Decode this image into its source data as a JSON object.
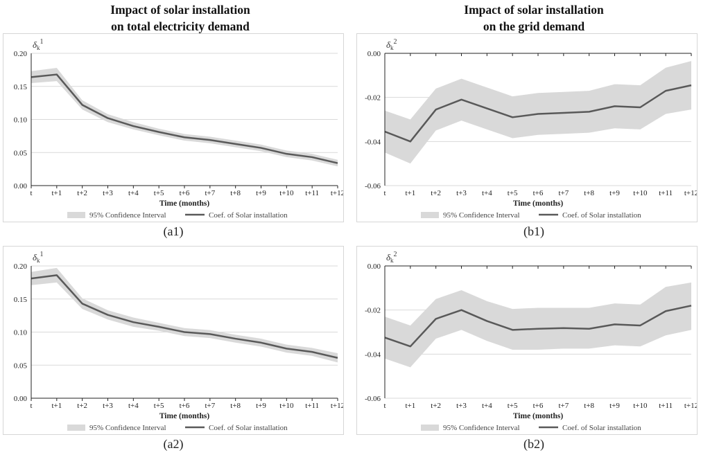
{
  "titles": {
    "left": [
      "Impact of solar installation",
      "on total electricity demand"
    ],
    "right": [
      "Impact of solar installation",
      "on the grid demand"
    ]
  },
  "colors": {
    "band": "#d9d9d9",
    "line": "#595959",
    "grid": "#d9d9d9",
    "axis": "#222222"
  },
  "chart_data": [
    {
      "id": "a1",
      "panel_label": "(a1)",
      "type": "line",
      "ylabel": "δk1",
      "ylabel_sup": "1",
      "xlabel": "Time (months)",
      "x": [
        "t",
        "t+1",
        "t+2",
        "t+3",
        "t+4",
        "t+5",
        "t+6",
        "t+7",
        "t+8",
        "t+9",
        "t+10",
        "t+11",
        "t+12"
      ],
      "yticks": [
        "0.20",
        "0.15",
        "0.10",
        "0.05",
        "0.00"
      ],
      "ylim": [
        0,
        0.2
      ],
      "ytick_values": [
        0.2,
        0.15,
        0.1,
        0.05,
        0
      ],
      "xaxis_position": "bottom",
      "series": [
        {
          "name": "Coef. of Solar installation",
          "values": [
            0.164,
            0.168,
            0.122,
            0.102,
            0.09,
            0.081,
            0.073,
            0.069,
            0.063,
            0.057,
            0.048,
            0.043,
            0.034
          ]
        },
        {
          "name": "95% Confidence Interval",
          "upper": [
            0.173,
            0.178,
            0.129,
            0.108,
            0.096,
            0.086,
            0.078,
            0.074,
            0.068,
            0.062,
            0.053,
            0.048,
            0.039
          ],
          "lower": [
            0.155,
            0.158,
            0.115,
            0.096,
            0.085,
            0.076,
            0.068,
            0.064,
            0.058,
            0.052,
            0.043,
            0.038,
            0.029
          ]
        }
      ],
      "legend": [
        "95% Confidence Interval",
        "Coef. of Solar installation"
      ],
      "legend_position": "bottom"
    },
    {
      "id": "b1",
      "panel_label": "(b1)",
      "type": "line",
      "ylabel": "δk2",
      "ylabel_sup": "2",
      "xlabel": "Time (months)",
      "x": [
        "t",
        "t+1",
        "t+2",
        "t+3",
        "t+4",
        "t+5",
        "t+6",
        "t+7",
        "t+8",
        "t+9",
        "t+10",
        "t+11",
        "t+12"
      ],
      "yticks": [
        "0.00",
        "-0.02",
        "-0.04",
        "-0.06"
      ],
      "ylim": [
        -0.06,
        0
      ],
      "ytick_values": [
        0,
        -0.02,
        -0.04,
        -0.06
      ],
      "xaxis_position": "top",
      "series": [
        {
          "name": "Coef. of Solar installation",
          "values": [
            -0.0355,
            -0.04,
            -0.0255,
            -0.021,
            -0.025,
            -0.029,
            -0.0275,
            -0.027,
            -0.0265,
            -0.024,
            -0.0245,
            -0.017,
            -0.0145
          ]
        },
        {
          "name": "95% Confidence Interval",
          "upper": [
            -0.026,
            -0.03,
            -0.016,
            -0.0115,
            -0.0155,
            -0.0195,
            -0.018,
            -0.0175,
            -0.017,
            -0.014,
            -0.0145,
            -0.0065,
            -0.0035
          ],
          "lower": [
            -0.045,
            -0.05,
            -0.035,
            -0.0305,
            -0.0345,
            -0.0385,
            -0.037,
            -0.0365,
            -0.036,
            -0.034,
            -0.0345,
            -0.0275,
            -0.0255
          ]
        }
      ],
      "legend": [
        "95% Confidence Interval",
        "Coef. of Solar installation"
      ],
      "legend_position": "bottom"
    },
    {
      "id": "a2",
      "panel_label": "(a2)",
      "type": "line",
      "ylabel": "δk1",
      "ylabel_sup": "1",
      "xlabel": "Time (months)",
      "x": [
        "t",
        "t+1",
        "t+2",
        "t+3",
        "t+4",
        "t+5",
        "t+6",
        "t+7",
        "t+8",
        "t+9",
        "t+10",
        "t+11",
        "t+12"
      ],
      "yticks": [
        "0.20",
        "0.15",
        "0.10",
        "0.05",
        "0.00"
      ],
      "ylim": [
        0,
        0.2
      ],
      "ytick_values": [
        0.2,
        0.15,
        0.1,
        0.05,
        0
      ],
      "xaxis_position": "bottom",
      "series": [
        {
          "name": "Coef. of Solar installation",
          "values": [
            0.181,
            0.186,
            0.143,
            0.126,
            0.115,
            0.108,
            0.1,
            0.097,
            0.09,
            0.084,
            0.075,
            0.07,
            0.061
          ]
        },
        {
          "name": "95% Confidence Interval",
          "upper": [
            0.191,
            0.197,
            0.151,
            0.133,
            0.122,
            0.114,
            0.106,
            0.103,
            0.096,
            0.09,
            0.081,
            0.076,
            0.068
          ],
          "lower": [
            0.171,
            0.175,
            0.135,
            0.119,
            0.108,
            0.102,
            0.094,
            0.091,
            0.084,
            0.078,
            0.069,
            0.064,
            0.054
          ]
        }
      ],
      "legend": [
        "95% Confidence Interval",
        "Coef. of Solar installation"
      ],
      "legend_position": "bottom"
    },
    {
      "id": "b2",
      "panel_label": "(b2)",
      "type": "line",
      "ylabel": "δk2",
      "ylabel_sup": "2",
      "xlabel": "Time (months)",
      "x": [
        "t",
        "t+1",
        "t+2",
        "t+3",
        "t+4",
        "t+5",
        "t+6",
        "t+7",
        "t+8",
        "t+9",
        "t+10",
        "t+11",
        "t+12"
      ],
      "yticks": [
        "0.00",
        "-0.02",
        "-0.04",
        "-0.06"
      ],
      "ylim": [
        -0.06,
        0
      ],
      "ytick_values": [
        0,
        -0.02,
        -0.04,
        -0.06
      ],
      "xaxis_position": "top",
      "series": [
        {
          "name": "Coef. of Solar installation",
          "values": [
            -0.0325,
            -0.0365,
            -0.024,
            -0.02,
            -0.025,
            -0.029,
            -0.0285,
            -0.0282,
            -0.0285,
            -0.0265,
            -0.027,
            -0.0205,
            -0.018
          ]
        },
        {
          "name": "95% Confidence Interval",
          "upper": [
            -0.023,
            -0.027,
            -0.015,
            -0.011,
            -0.016,
            -0.0195,
            -0.019,
            -0.019,
            -0.019,
            -0.017,
            -0.0175,
            -0.0095,
            -0.0075
          ],
          "lower": [
            -0.042,
            -0.046,
            -0.033,
            -0.029,
            -0.034,
            -0.038,
            -0.038,
            -0.0375,
            -0.0375,
            -0.036,
            -0.0365,
            -0.0315,
            -0.029
          ]
        }
      ],
      "legend": [
        "95% Confidence Interval",
        "Coef. of Solar installation"
      ],
      "legend_position": "bottom"
    }
  ]
}
